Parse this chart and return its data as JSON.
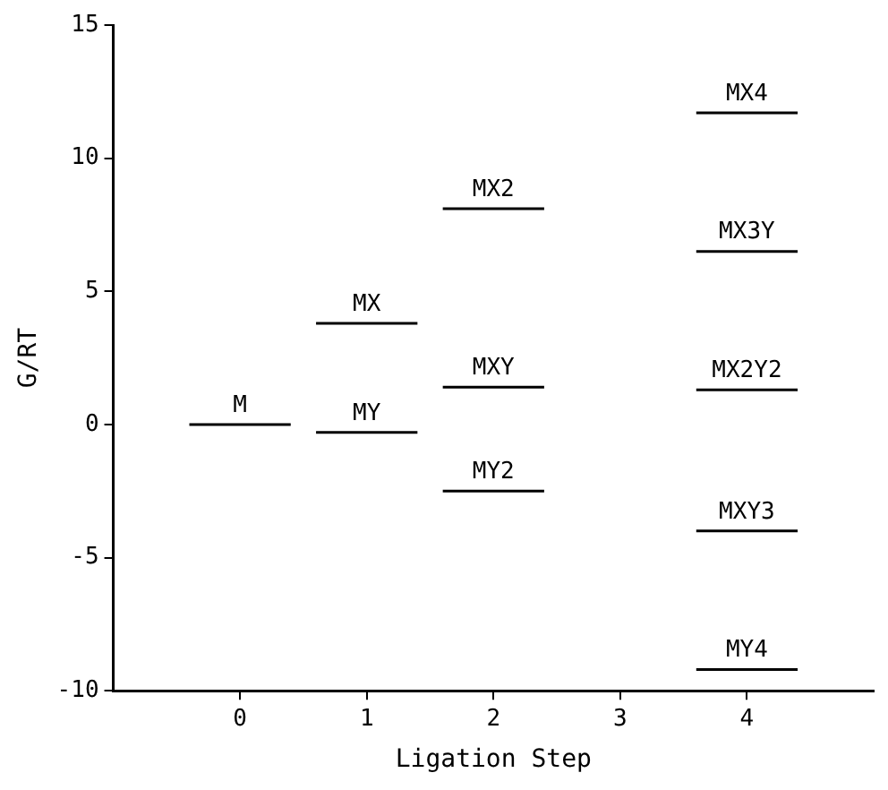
{
  "chart_data": {
    "type": "line",
    "xlabel": "Ligation Step",
    "ylabel": "G/RT",
    "xlim": [
      -1,
      5
    ],
    "xticks": [
      0,
      1,
      2,
      3,
      4
    ],
    "ylim": [
      -10,
      15
    ],
    "yticks": [
      -10,
      -5,
      0,
      5,
      10,
      15
    ],
    "grid": false,
    "legend": false,
    "line_style": "solid",
    "series": [
      {
        "name": "M",
        "color": "#000000",
        "x": [
          -0.4,
          0.4
        ],
        "values": [
          0,
          0
        ]
      },
      {
        "name": "MX",
        "color": "#000000",
        "x": [
          0.6,
          1.4
        ],
        "values": [
          3.8,
          3.8
        ]
      },
      {
        "name": "MY",
        "color": "#000000",
        "x": [
          0.6,
          1.4
        ],
        "values": [
          -0.3,
          -0.3
        ]
      },
      {
        "name": "MX2",
        "color": "#000000",
        "x": [
          1.6,
          2.4
        ],
        "values": [
          8.1,
          8.1
        ]
      },
      {
        "name": "MXY",
        "color": "#000000",
        "x": [
          1.6,
          2.4
        ],
        "values": [
          1.4,
          1.4
        ]
      },
      {
        "name": "MY2",
        "color": "#000000",
        "x": [
          1.6,
          2.4
        ],
        "values": [
          -2.5,
          -2.5
        ]
      },
      {
        "name": "MX4",
        "color": "#000000",
        "x": [
          3.6,
          4.4
        ],
        "values": [
          11.7,
          11.7
        ]
      },
      {
        "name": "MX3Y",
        "color": "#000000",
        "x": [
          3.6,
          4.4
        ],
        "values": [
          6.5,
          6.5
        ]
      },
      {
        "name": "MX2Y2",
        "color": "#000000",
        "x": [
          3.6,
          4.4
        ],
        "values": [
          1.3,
          1.3
        ]
      },
      {
        "name": "MXY3",
        "color": "#000000",
        "x": [
          3.6,
          4.4
        ],
        "values": [
          -4.0,
          -4.0
        ]
      },
      {
        "name": "MY4",
        "color": "#000000",
        "x": [
          3.6,
          4.4
        ],
        "values": [
          -9.2,
          -9.2
        ]
      }
    ]
  }
}
